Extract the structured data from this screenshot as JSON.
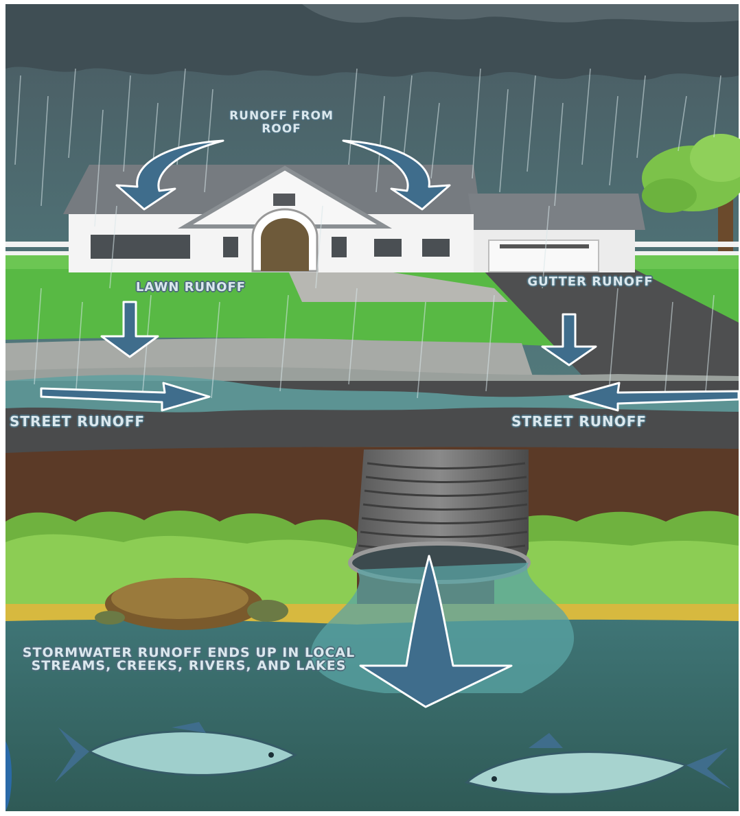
{
  "labels": {
    "roof_runoff": "RUNOFF FROM ROOF",
    "lawn_runoff": "LAWN RUNOFF",
    "gutter_runoff": "GUTTER RUNOFF",
    "street_runoff_left": "STREET RUNOFF",
    "street_runoff_right": "STREET RUNOFF",
    "stormwater": "STORMWATER RUNOFF ENDS UP IN LOCAL STREAMS, CREEKS, RIVERS, AND LAKES"
  },
  "colors": {
    "sky": "#4f6b73",
    "rain_sky": "#5f8588",
    "arrow": "#3f6d8c",
    "arrow_outline": "#ffffff",
    "grass": "#5cbc48",
    "street": "#4d4d4d",
    "soil": "#5c3a26",
    "water": "#3f6f6e",
    "shrub": "#7cc04b"
  }
}
